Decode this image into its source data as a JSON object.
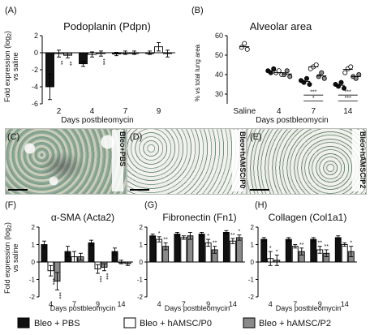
{
  "panel_letters": [
    "(A)",
    "(B)",
    "(C)",
    "(D)",
    "(E)",
    "(F)",
    "(G)",
    "(H)"
  ],
  "days_label": "Days postbleomycin",
  "fold_label_line1": "Fold expression (log",
  "fold_label_sub": "2",
  "fold_label_line1_end": ")",
  "fold_label_line2": "vs saline",
  "micrographs": [
    {
      "label": "Bleo+PBS",
      "tint": "#7fa08a"
    },
    {
      "label": "Bleo+hAMSC/P0",
      "tint": "#9fb4a6"
    },
    {
      "label": "Bleo+hAMSC/P2",
      "tint": "#9bb2a1"
    }
  ],
  "legend": [
    {
      "label": "Bleo + PBS",
      "color": "#111111"
    },
    {
      "label": "Bleo + hAMSC/P0",
      "color": "#ffffff"
    },
    {
      "label": "Bleo + hAMSC/P2",
      "color": "#8a8a8a"
    }
  ],
  "chart_data": [
    {
      "panel": "A",
      "type": "bar",
      "title": "Podoplanin (Pdpn)",
      "xlabel": "Days postbleomycin",
      "ylabel": "Fold expression (log2) vs saline",
      "categories": [
        "2",
        "4",
        "7",
        "9"
      ],
      "ylim": [
        -6,
        2
      ],
      "yticks": [
        -6,
        -4,
        -2,
        0,
        2
      ],
      "series": [
        {
          "name": "Bleo + PBS",
          "values": [
            -4.0,
            -1.3,
            -0.15,
            0.0
          ],
          "errors": [
            1.5,
            0.3,
            0.2,
            0.2
          ]
        },
        {
          "name": "Bleo + hAMSC/P0",
          "values": [
            -0.1,
            -0.2,
            0.0,
            0.7
          ],
          "errors": [
            0.4,
            0.3,
            0.2,
            0.5
          ]
        },
        {
          "name": "Bleo + hAMSC/P2",
          "values": [
            -0.3,
            -0.1,
            0.0,
            -0.1
          ],
          "errors": [
            0.3,
            0.3,
            0.2,
            0.4
          ]
        }
      ],
      "annotations": [
        {
          "category": "2",
          "series": 1,
          "text": "**"
        },
        {
          "category": "2",
          "series": 2,
          "text": "**"
        },
        {
          "category": "4",
          "series": 2,
          "text": "***"
        }
      ]
    },
    {
      "panel": "B",
      "type": "scatter",
      "title": "Alveolar area",
      "xlabel": "Days postbleomycin",
      "ylabel": "% vs total lung area",
      "categories": [
        "Saline",
        "4",
        "7",
        "14"
      ],
      "ylim": [
        25,
        60
      ],
      "yticks": [
        30,
        40,
        50,
        60
      ],
      "series": [
        {
          "name": "Saline",
          "points": [
            {
              "x": "Saline",
              "y": [
                54,
                56,
                53
              ]
            }
          ]
        },
        {
          "name": "Bleo + PBS",
          "points": [
            {
              "x": "4",
              "y": [
                42,
                41,
                43
              ]
            },
            {
              "x": "7",
              "y": [
                37,
                36,
                38,
                35
              ]
            },
            {
              "x": "14",
              "y": [
                35,
                34,
                36,
                33
              ]
            }
          ]
        },
        {
          "name": "Bleo + hAMSC/P0",
          "points": [
            {
              "x": "4",
              "y": [
                41,
                42,
                40
              ]
            },
            {
              "x": "7",
              "y": [
                43,
                44,
                45
              ]
            },
            {
              "x": "14",
              "y": [
                41,
                43,
                44
              ]
            }
          ]
        },
        {
          "name": "Bleo + hAMSC/P2",
          "points": [
            {
              "x": "4",
              "y": [
                40,
                42,
                39
              ]
            },
            {
              "x": "7",
              "y": [
                39,
                41,
                38
              ]
            },
            {
              "x": "14",
              "y": [
                39,
                38,
                40
              ]
            }
          ]
        }
      ],
      "annotations": [
        {
          "category": "7",
          "text": "***"
        },
        {
          "category": "7",
          "text": "*"
        },
        {
          "category": "14",
          "text": "***"
        },
        {
          "category": "14",
          "text": "***"
        }
      ]
    },
    {
      "panel": "F",
      "type": "bar",
      "title": "α-SMA (Acta2)",
      "xlabel": "Days postbleomycin",
      "ylabel": "Fold expression (log2) vs saline",
      "categories": [
        "4",
        "7",
        "9",
        "14"
      ],
      "ylim": [
        -2,
        2
      ],
      "yticks": [
        -2,
        -1,
        0,
        1,
        2
      ],
      "series": [
        {
          "name": "Bleo + PBS",
          "values": [
            1.0,
            0.6,
            1.1,
            0.6
          ],
          "errors": [
            0.2,
            0.3,
            0.15,
            0.2
          ]
        },
        {
          "name": "Bleo + hAMSC/P0",
          "values": [
            -0.5,
            0.3,
            -0.4,
            0.0
          ],
          "errors": [
            0.3,
            0.3,
            0.25,
            0.1
          ]
        },
        {
          "name": "Bleo + hAMSC/P2",
          "values": [
            -1.1,
            0.3,
            -0.3,
            -0.1
          ],
          "errors": [
            0.5,
            0.2,
            0.2,
            0.1
          ]
        }
      ],
      "annotations": [
        {
          "category": "4",
          "series": 1,
          "text": "***"
        },
        {
          "category": "4",
          "series": 2,
          "text": "***"
        },
        {
          "category": "9",
          "series": 1,
          "text": "***"
        },
        {
          "category": "9",
          "series": 2,
          "text": "***"
        }
      ]
    },
    {
      "panel": "G",
      "type": "bar",
      "title": "Fibronectin (Fn1)",
      "xlabel": "Days postbleomycin",
      "categories": [
        "4",
        "7",
        "9",
        "14"
      ],
      "ylim": [
        -2,
        2
      ],
      "yticks": [
        -2,
        -1,
        0,
        1,
        2
      ],
      "series": [
        {
          "name": "Bleo + PBS",
          "values": [
            1.5,
            1.6,
            1.6,
            1.7
          ],
          "errors": [
            0.1,
            0.1,
            0.1,
            0.1
          ]
        },
        {
          "name": "Bleo + hAMSC/P0",
          "values": [
            1.3,
            1.4,
            1.1,
            1.2
          ],
          "errors": [
            0.15,
            0.1,
            0.2,
            0.15
          ]
        },
        {
          "name": "Bleo + hAMSC/P2",
          "values": [
            0.9,
            1.5,
            0.7,
            1.4
          ],
          "errors": [
            0.2,
            0.2,
            0.2,
            0.15
          ]
        }
      ],
      "annotations": [
        {
          "category": "4",
          "series": 1,
          "text": "*"
        },
        {
          "category": "4",
          "series": 2,
          "text": "**"
        },
        {
          "category": "9",
          "series": 1,
          "text": "*"
        },
        {
          "category": "9",
          "series": 2,
          "text": "**"
        },
        {
          "category": "14",
          "series": 1,
          "text": "**"
        },
        {
          "category": "14",
          "series": 2,
          "text": "*"
        }
      ]
    },
    {
      "panel": "H",
      "type": "bar",
      "title": "Collagen (Col1a1)",
      "xlabel": "Days postbleomycin",
      "categories": [
        "4",
        "7",
        "9",
        "14"
      ],
      "ylim": [
        -2,
        2
      ],
      "yticks": [
        -2,
        -1,
        0,
        1,
        2
      ],
      "series": [
        {
          "name": "Bleo + PBS",
          "values": [
            1.3,
            1.3,
            1.3,
            1.4
          ],
          "errors": [
            0.1,
            0.1,
            0.1,
            0.1
          ]
        },
        {
          "name": "Bleo + hAMSC/P0",
          "values": [
            0.2,
            0.9,
            0.7,
            1.0
          ],
          "errors": [
            0.4,
            0.1,
            0.2,
            0.1
          ]
        },
        {
          "name": "Bleo + hAMSC/P2",
          "values": [
            0.1,
            0.6,
            0.5,
            0.6
          ],
          "errors": [
            0.3,
            0.2,
            0.2,
            0.3
          ]
        }
      ],
      "annotations": [
        {
          "category": "4",
          "series": 1,
          "text": "*"
        },
        {
          "category": "4",
          "series": 2,
          "text": "*"
        },
        {
          "category": "7",
          "series": 2,
          "text": "**"
        },
        {
          "category": "9",
          "series": 1,
          "text": "**"
        },
        {
          "category": "9",
          "series": 2,
          "text": "**"
        },
        {
          "category": "14",
          "series": 2,
          "text": "*"
        }
      ]
    }
  ]
}
